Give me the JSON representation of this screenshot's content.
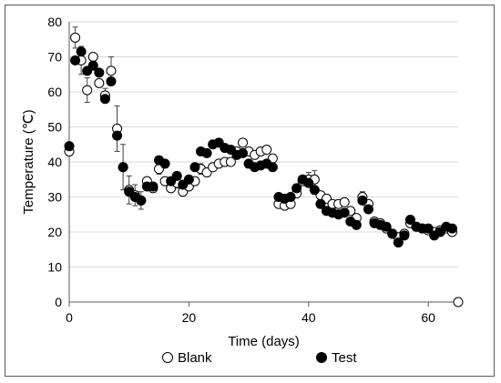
{
  "chart_data": {
    "type": "scatter",
    "xlabel": "Time (days)",
    "ylabel": "Temperature (℃)",
    "xlim": [
      0,
      65
    ],
    "ylim": [
      0,
      80
    ],
    "x_ticks": [
      "0",
      "20",
      "40",
      "60"
    ],
    "y_ticks": [
      "0",
      "10",
      "20",
      "30",
      "40",
      "50",
      "60",
      "70",
      "80"
    ],
    "grid": "horizontal",
    "legend_position": "bottom",
    "series": [
      {
        "name": "Blank",
        "marker": "open-circle",
        "points": [
          [
            0,
            43
          ],
          [
            1,
            75.5
          ],
          [
            2,
            69
          ],
          [
            3,
            60.5
          ],
          [
            4,
            70
          ],
          [
            5,
            62.5
          ],
          [
            6,
            59
          ],
          [
            7,
            66
          ],
          [
            8,
            49.5
          ],
          [
            9,
            38.5
          ],
          [
            10,
            32
          ],
          [
            11,
            30.5
          ],
          [
            12,
            29
          ],
          [
            13,
            34.5
          ],
          [
            14,
            32.5
          ],
          [
            15,
            38
          ],
          [
            16,
            34.5
          ],
          [
            17,
            32.5
          ],
          [
            18,
            34
          ],
          [
            19,
            31.5
          ],
          [
            20,
            33
          ],
          [
            21,
            34.5
          ],
          [
            22,
            38
          ],
          [
            23,
            37
          ],
          [
            24,
            38.5
          ],
          [
            25,
            39.5
          ],
          [
            26,
            40
          ],
          [
            27,
            40
          ],
          [
            28,
            43
          ],
          [
            29,
            45.5
          ],
          [
            30,
            43
          ],
          [
            31,
            42
          ],
          [
            32,
            43
          ],
          [
            33,
            43.5
          ],
          [
            34,
            41
          ],
          [
            35,
            28
          ],
          [
            36,
            27.5
          ],
          [
            37,
            28
          ],
          [
            38,
            31
          ],
          [
            39,
            34.5
          ],
          [
            40,
            35
          ],
          [
            41,
            35
          ],
          [
            42,
            30.5
          ],
          [
            43,
            29.5
          ],
          [
            44,
            28
          ],
          [
            45,
            28
          ],
          [
            46,
            28.5
          ],
          [
            47,
            26
          ],
          [
            48,
            24
          ],
          [
            49,
            30
          ],
          [
            50,
            28
          ],
          [
            51,
            23
          ],
          [
            52,
            22.5
          ],
          [
            53,
            21
          ],
          [
            54,
            19.5
          ],
          [
            55,
            18.5
          ],
          [
            56,
            19.5
          ],
          [
            57,
            22.5
          ],
          [
            58,
            21.5
          ],
          [
            59,
            21
          ],
          [
            60,
            20.5
          ],
          [
            61,
            20
          ],
          [
            62,
            20.5
          ],
          [
            63,
            21
          ],
          [
            64,
            20
          ],
          [
            65,
            0
          ]
        ],
        "error_bars": [
          [
            1,
            3
          ],
          [
            2,
            4
          ],
          [
            3,
            3.5
          ],
          [
            6,
            2
          ],
          [
            7,
            4
          ],
          [
            8,
            6.5
          ],
          [
            9,
            6.5
          ],
          [
            10,
            4
          ],
          [
            11,
            3
          ],
          [
            12,
            2.5
          ],
          [
            15,
            1.5
          ],
          [
            18,
            1.5
          ],
          [
            22,
            1.5
          ],
          [
            40,
            2
          ],
          [
            41,
            2.5
          ],
          [
            49,
            1.5
          ]
        ]
      },
      {
        "name": "Test",
        "marker": "filled-circle",
        "points": [
          [
            0,
            44.5
          ],
          [
            1,
            69
          ],
          [
            2,
            71.5
          ],
          [
            3,
            66
          ],
          [
            4,
            67.5
          ],
          [
            5,
            65.5
          ],
          [
            6,
            58
          ],
          [
            7,
            63
          ],
          [
            8,
            47.5
          ],
          [
            9,
            38.5
          ],
          [
            10,
            31.5
          ],
          [
            11,
            30
          ],
          [
            12,
            29
          ],
          [
            13,
            33
          ],
          [
            14,
            33
          ],
          [
            15,
            40.5
          ],
          [
            16,
            39.5
          ],
          [
            17,
            34.5
          ],
          [
            18,
            36
          ],
          [
            19,
            33.5
          ],
          [
            20,
            35
          ],
          [
            21,
            38.5
          ],
          [
            22,
            43
          ],
          [
            23,
            42.5
          ],
          [
            24,
            45
          ],
          [
            25,
            45.5
          ],
          [
            26,
            44
          ],
          [
            27,
            43.5
          ],
          [
            28,
            42
          ],
          [
            29,
            42.5
          ],
          [
            30,
            39.5
          ],
          [
            31,
            38.5
          ],
          [
            32,
            39
          ],
          [
            33,
            39.5
          ],
          [
            34,
            38.5
          ],
          [
            35,
            30
          ],
          [
            36,
            29.5
          ],
          [
            37,
            30
          ],
          [
            38,
            32.5
          ],
          [
            39,
            35
          ],
          [
            40,
            34
          ],
          [
            41,
            32
          ],
          [
            42,
            28
          ],
          [
            43,
            26
          ],
          [
            44,
            25.5
          ],
          [
            45,
            25
          ],
          [
            46,
            25.5
          ],
          [
            47,
            23
          ],
          [
            48,
            22
          ],
          [
            49,
            29
          ],
          [
            50,
            26.5
          ],
          [
            51,
            22.5
          ],
          [
            52,
            22
          ],
          [
            53,
            21.5
          ],
          [
            54,
            19.5
          ],
          [
            55,
            17
          ],
          [
            56,
            19
          ],
          [
            57,
            23.5
          ],
          [
            58,
            21.5
          ],
          [
            59,
            21
          ],
          [
            60,
            21
          ],
          [
            61,
            19
          ],
          [
            62,
            20
          ],
          [
            63,
            21.5
          ],
          [
            64,
            21
          ]
        ]
      }
    ]
  }
}
